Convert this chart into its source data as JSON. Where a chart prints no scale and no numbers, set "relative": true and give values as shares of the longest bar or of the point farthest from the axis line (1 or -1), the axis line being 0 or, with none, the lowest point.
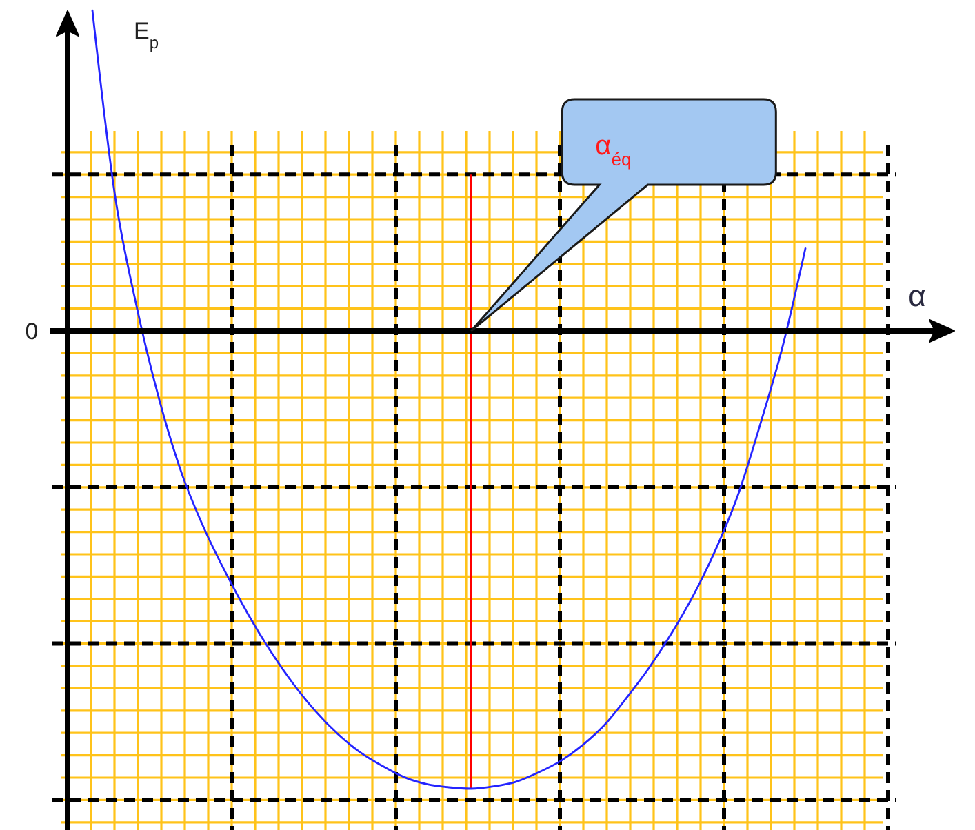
{
  "chart_data": {
    "type": "line",
    "relative": true,
    "categories": [
      null,
      null,
      null,
      null,
      null,
      null,
      null,
      null,
      null,
      null,
      null,
      null,
      null,
      null,
      null,
      null,
      null,
      null,
      null,
      null,
      null,
      null,
      null,
      null,
      null,
      null,
      null,
      null,
      null,
      null,
      null,
      null,
      null
    ],
    "series": [
      {
        "color": "#2424ff",
        "values": [
          0.7,
          0.3,
          0.05,
          -0.15,
          -0.31,
          -0.43,
          -0.53,
          -0.62,
          -0.7,
          -0.77,
          -0.83,
          -0.88,
          -0.92,
          -0.95,
          -0.975,
          -0.99,
          -0.997,
          -1,
          -0.995,
          -0.985,
          -0.965,
          -0.94,
          -0.905,
          -0.86,
          -0.8,
          -0.735,
          -0.66,
          -0.575,
          -0.475,
          -0.355,
          -0.2,
          -0.03,
          0.18
        ]
      }
    ],
    "xlabel": "α",
    "ylabel": "E$_{p}$",
    "grid": true,
    "annotations": [
      "0",
      "α$_{éq}$"
    ]
  }
}
